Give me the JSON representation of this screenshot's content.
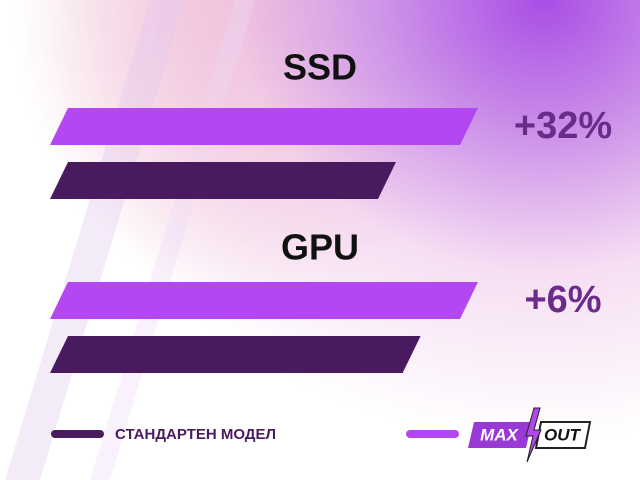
{
  "chart_data": {
    "type": "bar",
    "orientation": "horizontal",
    "categories": [
      "SSD",
      "GPU"
    ],
    "xlim": [
      0,
      100
    ],
    "series": [
      {
        "color": "#b347f2",
        "values": [
          100,
          100
        ]
      },
      {
        "name": "СТАНДАРТЕН МОДЕЛ",
        "color": "#4a1a5e",
        "values": [
          80,
          86
        ]
      }
    ],
    "differences": {
      "values": [
        32,
        6
      ],
      "value_labels": [
        "+32%",
        "+6%"
      ],
      "color": "#6a2b8a"
    },
    "logo": {
      "left": "MAX",
      "right": "OUT"
    }
  }
}
